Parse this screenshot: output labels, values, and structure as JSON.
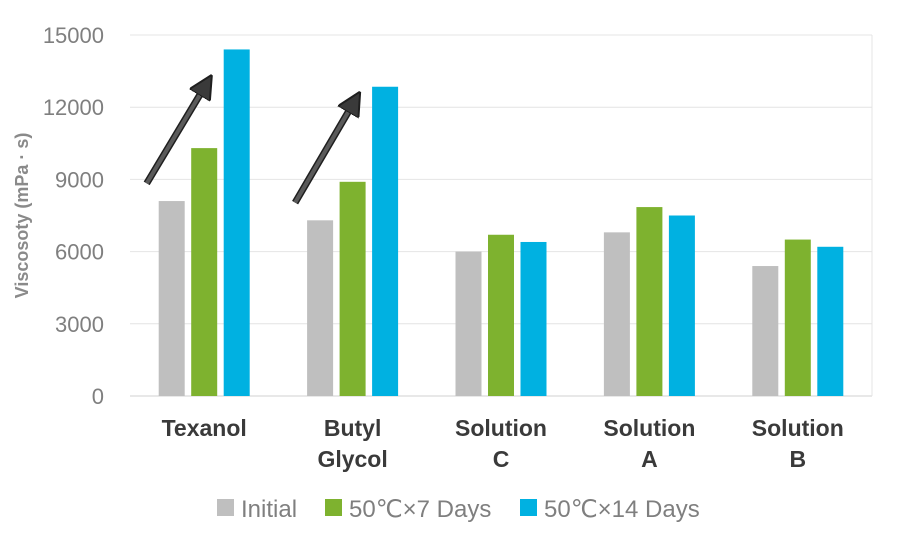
{
  "chart_data": {
    "type": "bar",
    "categories": [
      [
        "Texanol"
      ],
      [
        "Butyl",
        "Glycol"
      ],
      [
        "Solution",
        "C"
      ],
      [
        "Solution",
        "A"
      ],
      [
        "Solution",
        "B"
      ]
    ],
    "series": [
      {
        "name": "Initial",
        "color": "#bfbfbf",
        "values": [
          8100,
          7300,
          6000,
          6800,
          5400
        ]
      },
      {
        "name": "50℃×7 Days",
        "color": "#7eb22f",
        "values": [
          10300,
          8900,
          6700,
          7850,
          6500
        ]
      },
      {
        "name": "50℃×14 Days",
        "color": "#00b1e1",
        "values": [
          14400,
          12850,
          6400,
          7500,
          6200
        ]
      }
    ],
    "title": "",
    "xlabel": "",
    "ylabel": "Viscosoty (mPa · s)",
    "ylim": [
      0,
      15000
    ],
    "yticks": [
      0,
      3000,
      6000,
      9000,
      12000,
      15000
    ],
    "grid": true,
    "legend": "bottom",
    "annotations": [
      {
        "type": "arrow",
        "category": "Texanol",
        "from": 9500,
        "to": 13500
      },
      {
        "type": "arrow",
        "category": "Butyl Glycol",
        "from": 8700,
        "to": 12800
      }
    ]
  }
}
